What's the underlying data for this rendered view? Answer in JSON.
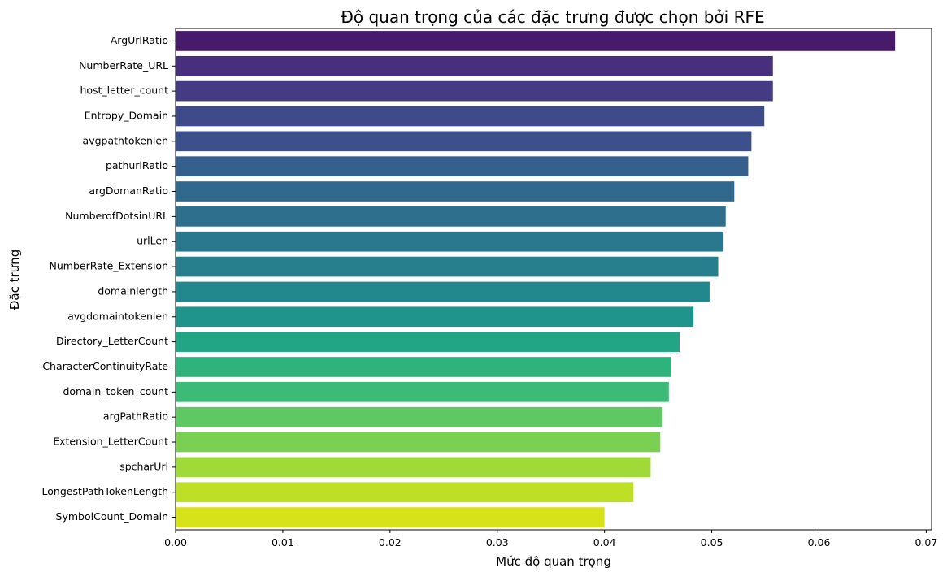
{
  "chart_data": {
    "type": "bar",
    "orientation": "horizontal",
    "title": "Độ quan trọng của các đặc trưng được chọn bởi RFE",
    "xlabel": "Mức độ quan trọng",
    "ylabel": "Đặc trưng",
    "xlim": [
      0,
      0.0705
    ],
    "xticks": [
      0.0,
      0.01,
      0.02,
      0.03,
      0.04,
      0.05,
      0.06,
      0.07
    ],
    "xtick_labels": [
      "0.00",
      "0.01",
      "0.02",
      "0.03",
      "0.04",
      "0.05",
      "0.06",
      "0.07"
    ],
    "grid": false,
    "palette": "viridis",
    "categories": [
      "ArgUrlRatio",
      "NumberRate_URL",
      "host_letter_count",
      "Entropy_Domain",
      "avgpathtokenlen",
      "pathurlRatio",
      "argDomanRatio",
      "NumberofDotsinURL",
      "urlLen",
      "NumberRate_Extension",
      "domainlength",
      "avgdomaintokenlen",
      "Directory_LetterCount",
      "CharacterContinuityRate",
      "domain_token_count",
      "argPathRatio",
      "Extension_LetterCount",
      "spcharUrl",
      "LongestPathTokenLength",
      "SymbolCount_Domain"
    ],
    "values": [
      0.0671,
      0.0557,
      0.0557,
      0.0549,
      0.0537,
      0.0534,
      0.0521,
      0.0513,
      0.0511,
      0.0506,
      0.0498,
      0.0483,
      0.047,
      0.0462,
      0.046,
      0.0454,
      0.0452,
      0.0443,
      0.0427,
      0.04
    ],
    "colors": [
      "#481a6c",
      "#472f7d",
      "#443b84",
      "#3e4a89",
      "#3c508b",
      "#355f8d",
      "#31688e",
      "#2e6f8e",
      "#2a788e",
      "#277f8e",
      "#23888e",
      "#1f948c",
      "#21a585",
      "#2eb37c",
      "#3bbb75",
      "#5ec962",
      "#7ad151",
      "#a0da39",
      "#bddf26",
      "#d8e219"
    ]
  }
}
